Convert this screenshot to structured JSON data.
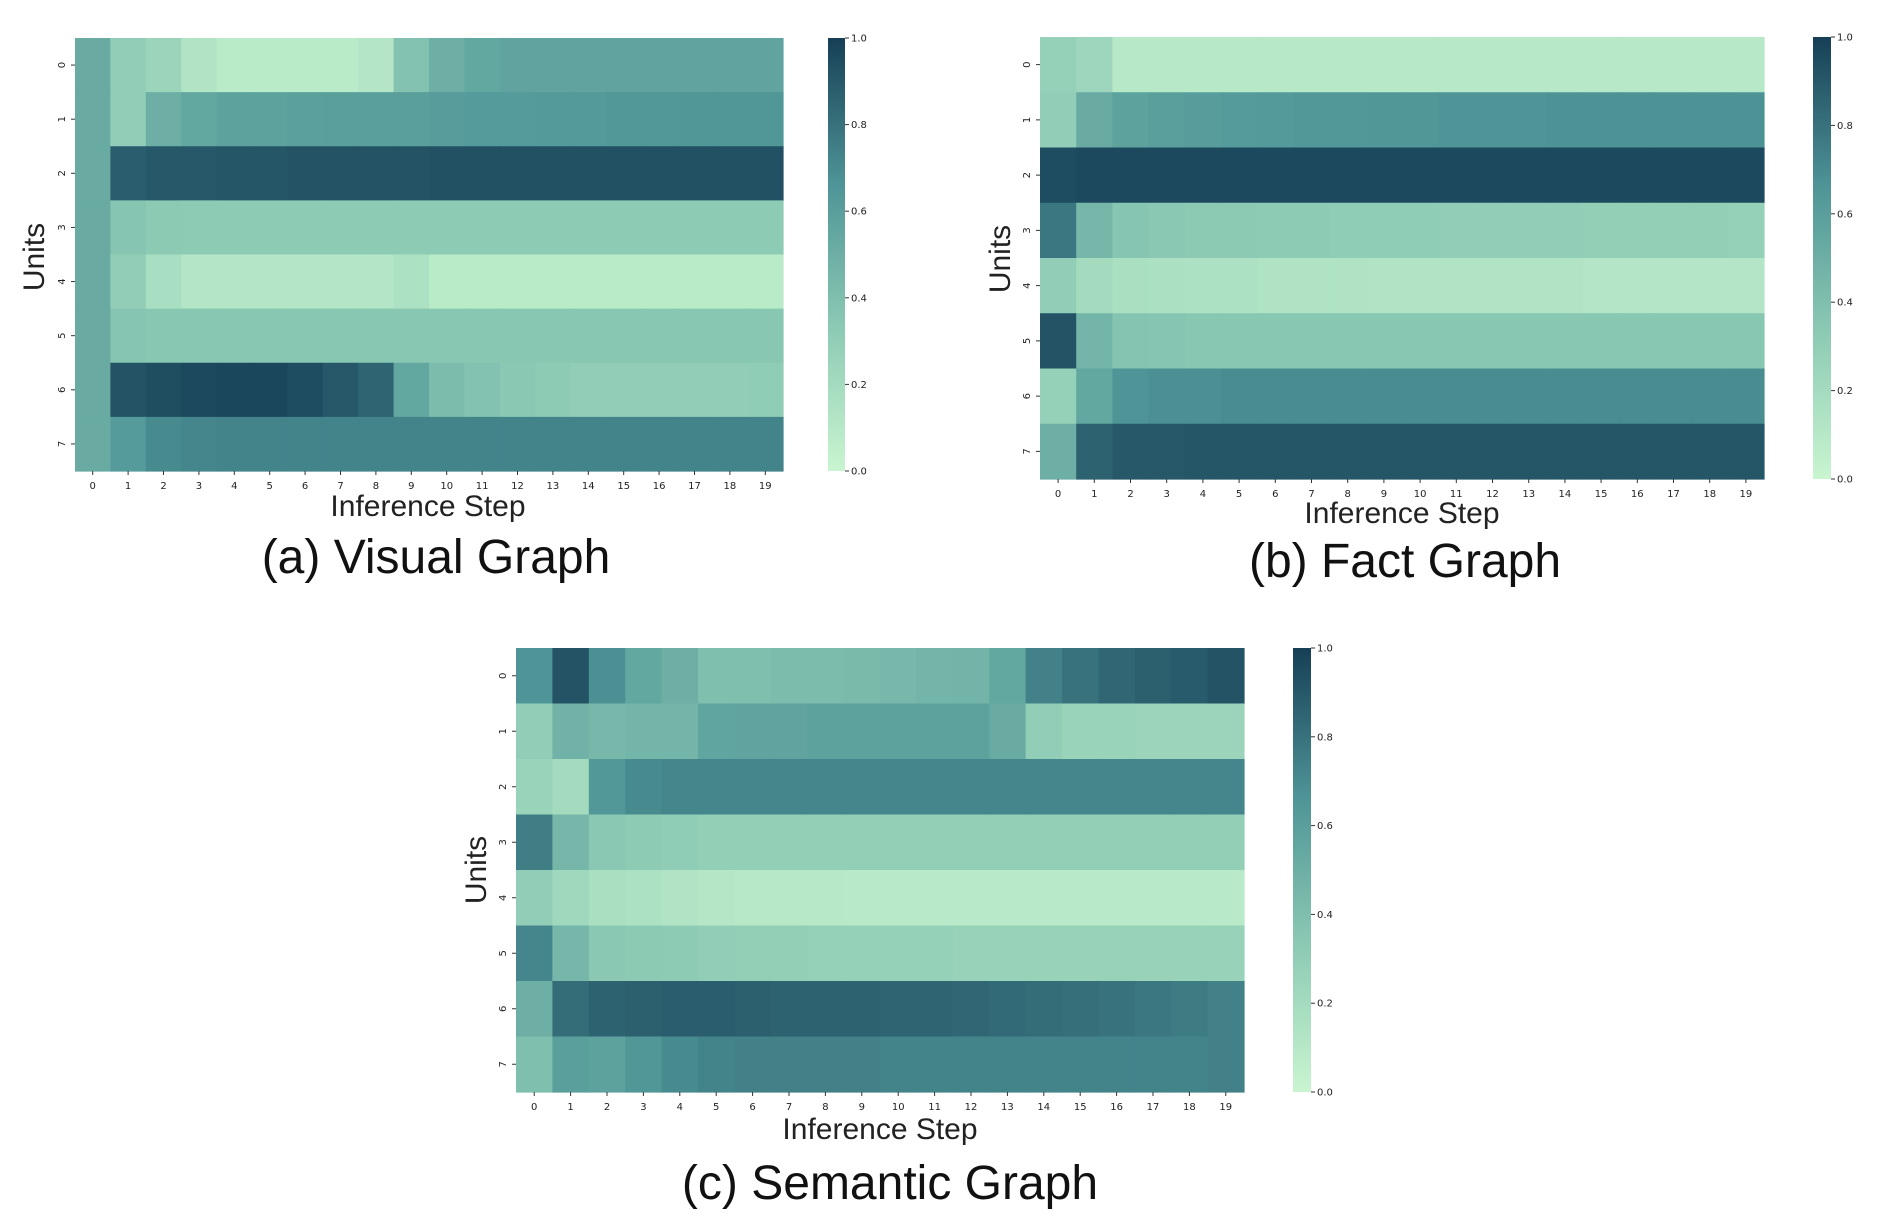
{
  "colors": {
    "low": "#c9f5d0",
    "mid1": "#8ccab4",
    "mid2": "#4f9597",
    "high": "#163f56"
  },
  "chart_data": [
    {
      "type": "heatmap",
      "caption": "(a) Visual Graph",
      "xlabel": "Inference Step",
      "ylabel": "Units",
      "x": [
        0,
        1,
        2,
        3,
        4,
        5,
        6,
        7,
        8,
        9,
        10,
        11,
        12,
        13,
        14,
        15,
        16,
        17,
        18,
        19
      ],
      "y": [
        0,
        1,
        2,
        3,
        4,
        5,
        6,
        7
      ],
      "colorbar": {
        "range": [
          0.0,
          1.0
        ],
        "ticks": [
          "0.0",
          "0.2",
          "0.4",
          "0.6",
          "0.8",
          "1.0"
        ]
      },
      "values": [
        [
          0.52,
          0.3,
          0.25,
          0.13,
          0.08,
          0.08,
          0.08,
          0.08,
          0.12,
          0.38,
          0.5,
          0.55,
          0.57,
          0.57,
          0.57,
          0.57,
          0.57,
          0.57,
          0.57,
          0.57
        ],
        [
          0.52,
          0.3,
          0.5,
          0.55,
          0.58,
          0.58,
          0.59,
          0.6,
          0.6,
          0.6,
          0.61,
          0.62,
          0.62,
          0.63,
          0.63,
          0.64,
          0.64,
          0.65,
          0.65,
          0.65
        ],
        [
          0.52,
          0.88,
          0.9,
          0.9,
          0.91,
          0.91,
          0.92,
          0.92,
          0.92,
          0.92,
          0.93,
          0.93,
          0.93,
          0.93,
          0.93,
          0.93,
          0.93,
          0.93,
          0.93,
          0.93
        ],
        [
          0.52,
          0.36,
          0.33,
          0.32,
          0.32,
          0.32,
          0.32,
          0.32,
          0.32,
          0.32,
          0.32,
          0.32,
          0.32,
          0.32,
          0.32,
          0.32,
          0.32,
          0.32,
          0.32,
          0.32
        ],
        [
          0.52,
          0.3,
          0.18,
          0.12,
          0.12,
          0.12,
          0.12,
          0.12,
          0.12,
          0.15,
          0.08,
          0.08,
          0.08,
          0.08,
          0.08,
          0.08,
          0.08,
          0.08,
          0.08,
          0.08
        ],
        [
          0.52,
          0.36,
          0.35,
          0.35,
          0.35,
          0.35,
          0.35,
          0.35,
          0.35,
          0.35,
          0.35,
          0.35,
          0.35,
          0.35,
          0.35,
          0.35,
          0.35,
          0.35,
          0.35,
          0.35
        ],
        [
          0.52,
          0.92,
          0.94,
          0.96,
          0.97,
          0.97,
          0.95,
          0.9,
          0.85,
          0.55,
          0.42,
          0.38,
          0.34,
          0.32,
          0.3,
          0.3,
          0.3,
          0.3,
          0.3,
          0.31
        ],
        [
          0.52,
          0.62,
          0.7,
          0.72,
          0.73,
          0.73,
          0.73,
          0.73,
          0.73,
          0.73,
          0.73,
          0.73,
          0.73,
          0.73,
          0.73,
          0.73,
          0.73,
          0.73,
          0.73,
          0.73
        ]
      ]
    },
    {
      "type": "heatmap",
      "caption": "(b) Fact Graph",
      "xlabel": "Inference Step",
      "ylabel": "Units",
      "x": [
        0,
        1,
        2,
        3,
        4,
        5,
        6,
        7,
        8,
        9,
        10,
        11,
        12,
        13,
        14,
        15,
        16,
        17,
        18,
        19
      ],
      "y": [
        0,
        1,
        2,
        3,
        4,
        5,
        6,
        7
      ],
      "colorbar": {
        "range": [
          0.0,
          1.0
        ],
        "ticks": [
          "0.0",
          "0.2",
          "0.4",
          "0.6",
          "0.8",
          "1.0"
        ]
      },
      "values": [
        [
          0.28,
          0.24,
          0.1,
          0.1,
          0.1,
          0.1,
          0.1,
          0.1,
          0.1,
          0.1,
          0.1,
          0.1,
          0.1,
          0.1,
          0.1,
          0.1,
          0.1,
          0.1,
          0.1,
          0.1
        ],
        [
          0.3,
          0.52,
          0.58,
          0.6,
          0.61,
          0.62,
          0.63,
          0.64,
          0.64,
          0.65,
          0.65,
          0.66,
          0.66,
          0.66,
          0.67,
          0.67,
          0.67,
          0.67,
          0.67,
          0.67
        ],
        [
          0.95,
          0.96,
          0.96,
          0.96,
          0.96,
          0.96,
          0.96,
          0.96,
          0.96,
          0.96,
          0.96,
          0.96,
          0.96,
          0.96,
          0.96,
          0.96,
          0.96,
          0.96,
          0.96,
          0.96
        ],
        [
          0.78,
          0.45,
          0.36,
          0.34,
          0.33,
          0.33,
          0.32,
          0.32,
          0.31,
          0.31,
          0.31,
          0.3,
          0.3,
          0.3,
          0.3,
          0.29,
          0.29,
          0.29,
          0.29,
          0.28
        ],
        [
          0.3,
          0.2,
          0.17,
          0.16,
          0.15,
          0.15,
          0.14,
          0.14,
          0.14,
          0.13,
          0.13,
          0.13,
          0.13,
          0.13,
          0.13,
          0.12,
          0.12,
          0.12,
          0.12,
          0.12
        ],
        [
          0.92,
          0.46,
          0.37,
          0.36,
          0.35,
          0.35,
          0.35,
          0.35,
          0.35,
          0.35,
          0.35,
          0.35,
          0.35,
          0.35,
          0.35,
          0.35,
          0.35,
          0.35,
          0.35,
          0.35
        ],
        [
          0.28,
          0.55,
          0.66,
          0.68,
          0.68,
          0.69,
          0.69,
          0.69,
          0.69,
          0.69,
          0.69,
          0.69,
          0.69,
          0.69,
          0.69,
          0.69,
          0.69,
          0.69,
          0.69,
          0.69
        ],
        [
          0.5,
          0.86,
          0.9,
          0.9,
          0.91,
          0.91,
          0.91,
          0.91,
          0.91,
          0.91,
          0.91,
          0.91,
          0.91,
          0.91,
          0.91,
          0.91,
          0.91,
          0.91,
          0.91,
          0.91
        ]
      ]
    },
    {
      "type": "heatmap",
      "caption": "(c) Semantic Graph",
      "xlabel": "Inference Step",
      "ylabel": "Units",
      "x": [
        0,
        1,
        2,
        3,
        4,
        5,
        6,
        7,
        8,
        9,
        10,
        11,
        12,
        13,
        14,
        15,
        16,
        17,
        18,
        19
      ],
      "y": [
        0,
        1,
        2,
        3,
        4,
        5,
        6,
        7
      ],
      "colorbar": {
        "range": [
          0.0,
          1.0
        ],
        "ticks": [
          "0.0",
          "0.2",
          "0.4",
          "0.6",
          "0.8",
          "1.0"
        ]
      },
      "values": [
        [
          0.66,
          0.92,
          0.68,
          0.55,
          0.5,
          0.4,
          0.4,
          0.42,
          0.42,
          0.43,
          0.44,
          0.46,
          0.47,
          0.55,
          0.74,
          0.8,
          0.84,
          0.87,
          0.89,
          0.92
        ],
        [
          0.3,
          0.48,
          0.44,
          0.46,
          0.46,
          0.56,
          0.57,
          0.57,
          0.58,
          0.58,
          0.58,
          0.58,
          0.58,
          0.52,
          0.3,
          0.26,
          0.26,
          0.25,
          0.25,
          0.25
        ],
        [
          0.26,
          0.2,
          0.64,
          0.7,
          0.72,
          0.72,
          0.72,
          0.72,
          0.72,
          0.72,
          0.72,
          0.72,
          0.72,
          0.72,
          0.72,
          0.72,
          0.72,
          0.72,
          0.72,
          0.72
        ],
        [
          0.75,
          0.45,
          0.34,
          0.32,
          0.31,
          0.29,
          0.29,
          0.29,
          0.29,
          0.29,
          0.29,
          0.29,
          0.29,
          0.29,
          0.29,
          0.29,
          0.29,
          0.29,
          0.29,
          0.29
        ],
        [
          0.3,
          0.22,
          0.17,
          0.15,
          0.13,
          0.11,
          0.1,
          0.1,
          0.1,
          0.09,
          0.09,
          0.09,
          0.09,
          0.09,
          0.09,
          0.09,
          0.09,
          0.09,
          0.09,
          0.09
        ],
        [
          0.72,
          0.45,
          0.34,
          0.33,
          0.32,
          0.3,
          0.29,
          0.29,
          0.28,
          0.28,
          0.28,
          0.28,
          0.27,
          0.27,
          0.27,
          0.27,
          0.27,
          0.27,
          0.27,
          0.27
        ],
        [
          0.5,
          0.82,
          0.86,
          0.87,
          0.88,
          0.88,
          0.87,
          0.86,
          0.86,
          0.86,
          0.85,
          0.85,
          0.84,
          0.83,
          0.82,
          0.81,
          0.8,
          0.78,
          0.76,
          0.74
        ],
        [
          0.4,
          0.6,
          0.58,
          0.65,
          0.7,
          0.73,
          0.74,
          0.74,
          0.74,
          0.74,
          0.73,
          0.73,
          0.73,
          0.73,
          0.73,
          0.73,
          0.73,
          0.73,
          0.73,
          0.74
        ]
      ]
    }
  ]
}
